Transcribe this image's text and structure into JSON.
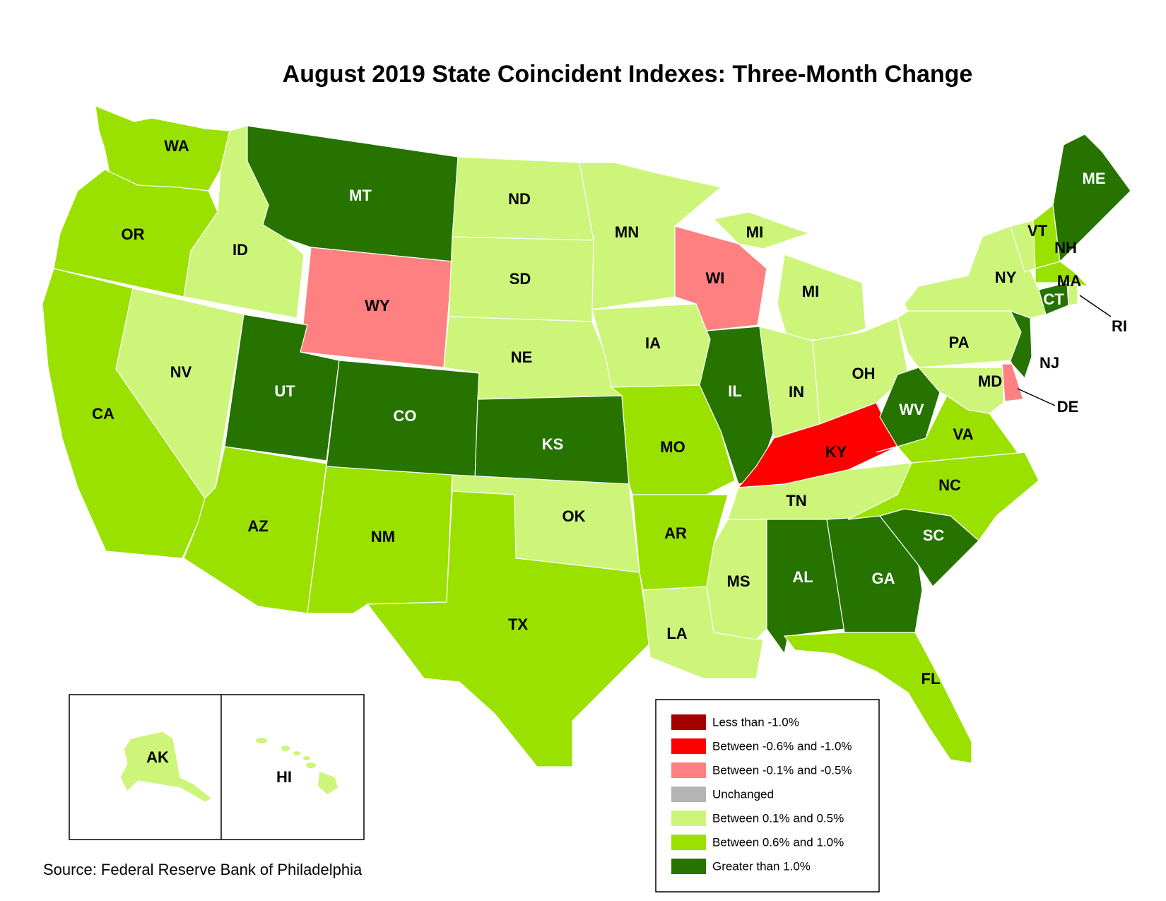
{
  "title": "August 2019 State Coincident Indexes: Three-Month Change",
  "source": "Source: Federal Reserve Bank of Philadelphia",
  "colors": {
    "lt_neg1": "#A50000",
    "neg06_neg1": "#FF0000",
    "neg01_neg05": "#FF8080",
    "unchanged": "#B4B4B4",
    "pos01_05": "#CCF57A",
    "pos06_1": "#9AE100",
    "gt1": "#267300",
    "border": "#ffffff"
  },
  "legend": [
    {
      "key": "lt_neg1",
      "label": "Less than -1.0%"
    },
    {
      "key": "neg06_neg1",
      "label": "Between -0.6% and -1.0%"
    },
    {
      "key": "neg01_neg05",
      "label": "Between -0.1% and -0.5%"
    },
    {
      "key": "unchanged",
      "label": "Unchanged"
    },
    {
      "key": "pos01_05",
      "label": "Between 0.1% and 0.5%"
    },
    {
      "key": "pos06_1",
      "label": "Between 0.6% and 1.0%"
    },
    {
      "key": "gt1",
      "label": "Greater than 1.0%"
    }
  ],
  "states": {
    "WA": "pos06_1",
    "OR": "pos06_1",
    "CA": "pos06_1",
    "ID": "pos01_05",
    "NV": "pos01_05",
    "MT": "gt1",
    "WY": "neg01_neg05",
    "UT": "gt1",
    "CO": "gt1",
    "AZ": "pos06_1",
    "NM": "pos06_1",
    "ND": "pos01_05",
    "SD": "pos01_05",
    "NE": "pos01_05",
    "KS": "gt1",
    "OK": "pos01_05",
    "TX": "pos06_1",
    "MN": "pos01_05",
    "IA": "pos01_05",
    "MO": "pos06_1",
    "AR": "pos06_1",
    "LA": "pos01_05",
    "WI": "neg01_neg05",
    "IL": "gt1",
    "MI": "pos01_05",
    "IN": "pos01_05",
    "OH": "pos01_05",
    "KY": "neg06_neg1",
    "TN": "pos01_05",
    "MS": "pos01_05",
    "AL": "gt1",
    "GA": "gt1",
    "FL": "pos06_1",
    "SC": "gt1",
    "NC": "pos06_1",
    "VA": "pos06_1",
    "WV": "gt1",
    "MD": "pos01_05",
    "DE": "neg01_neg05",
    "PA": "pos01_05",
    "NJ": "gt1",
    "NY": "pos01_05",
    "CT": "gt1",
    "RI": "pos01_05",
    "MA": "pos06_1",
    "VT": "pos01_05",
    "NH": "pos06_1",
    "ME": "gt1",
    "AK": "pos01_05",
    "HI": "pos01_05"
  },
  "labels": {
    "WA": "WA",
    "OR": "OR",
    "CA": "CA",
    "ID": "ID",
    "NV": "NV",
    "MT": "MT",
    "WY": "WY",
    "UT": "UT",
    "CO": "CO",
    "AZ": "AZ",
    "NM": "NM",
    "ND": "ND",
    "SD": "SD",
    "NE": "NE",
    "KS": "KS",
    "OK": "OK",
    "TX": "TX",
    "MN": "MN",
    "IA": "IA",
    "MO": "MO",
    "AR": "AR",
    "LA": "LA",
    "WI": "WI",
    "MI_UP": "MI",
    "MI": "MI",
    "IL": "IL",
    "IN": "IN",
    "OH": "OH",
    "KY": "KY",
    "TN": "TN",
    "MS": "MS",
    "AL": "AL",
    "GA": "GA",
    "FL": "FL",
    "SC": "SC",
    "NC": "NC",
    "VA": "VA",
    "WV": "WV",
    "MD": "MD",
    "DE": "DE",
    "PA": "PA",
    "NJ": "NJ",
    "NY": "NY",
    "CT": "CT",
    "RI": "RI",
    "MA": "MA",
    "VT": "VT",
    "NH": "NH",
    "ME": "ME",
    "AK": "AK",
    "HI": "HI"
  }
}
